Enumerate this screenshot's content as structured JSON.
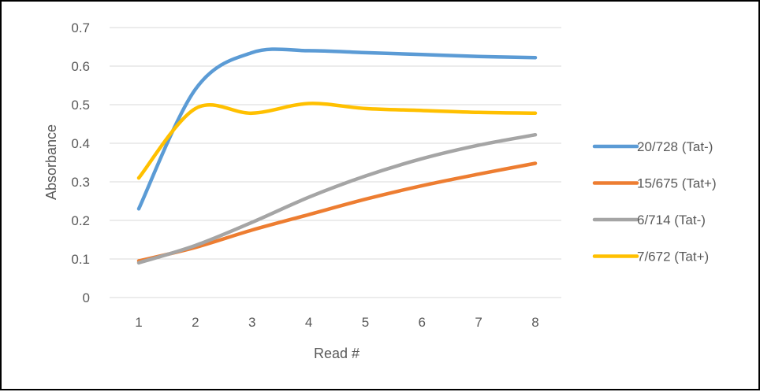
{
  "chart_data": {
    "type": "line",
    "xlabel": "Read #",
    "ylabel": "Absorbance",
    "x": [
      1,
      2,
      3,
      4,
      5,
      6,
      7,
      8
    ],
    "ylim": [
      0,
      0.7
    ],
    "yticks": [
      "0",
      "0.1",
      "0.2",
      "0.3",
      "0.4",
      "0.5",
      "0.6",
      "0.7"
    ],
    "xticks": [
      "1",
      "2",
      "3",
      "4",
      "5",
      "6",
      "7",
      "8"
    ],
    "grid": true,
    "legend_position": "right",
    "series": [
      {
        "name": "20/728 (Tat-)",
        "color": "#5B9BD5",
        "values": [
          0.23,
          0.54,
          0.635,
          0.64,
          0.635,
          0.63,
          0.625,
          0.622
        ]
      },
      {
        "name": "15/675 (Tat+)",
        "color": "#ED7D31",
        "values": [
          0.095,
          0.13,
          0.175,
          0.215,
          0.255,
          0.29,
          0.32,
          0.348
        ]
      },
      {
        "name": "6/714 (Tat-)",
        "color": "#A5A5A5",
        "values": [
          0.09,
          0.135,
          0.195,
          0.26,
          0.315,
          0.36,
          0.395,
          0.422
        ]
      },
      {
        "name": "7/672 (Tat+)",
        "color": "#FFC000",
        "values": [
          0.31,
          0.49,
          0.478,
          0.503,
          0.49,
          0.485,
          0.48,
          0.478
        ]
      }
    ]
  }
}
